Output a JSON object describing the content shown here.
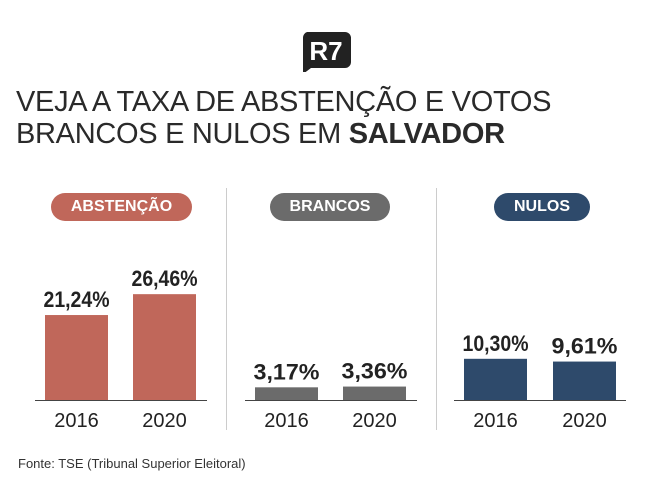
{
  "logo": "R7",
  "title": {
    "line1": "VEJA A TAXA DE ABSTENÇÃO E VOTOS",
    "line2_regular": "BRANCOS E NULOS EM ",
    "line2_bold": "SALVADOR"
  },
  "source": "Fonte: TSE (Tribunal Superior Eleitoral)",
  "chart_data": [
    {
      "type": "bar",
      "title": "ABSTENÇÃO",
      "color": "#c0675a",
      "categories": [
        "2016",
        "2020"
      ],
      "values": [
        21.24,
        26.46
      ],
      "labels": [
        "21,24%",
        "26,46%"
      ]
    },
    {
      "type": "bar",
      "title": "BRANCOS",
      "color": "#6b6b6b",
      "categories": [
        "2016",
        "2020"
      ],
      "values": [
        3.17,
        3.36
      ],
      "labels": [
        "3,17%",
        "3,36%"
      ]
    },
    {
      "type": "bar",
      "title": "NULOS",
      "color": "#2e4a6b",
      "categories": [
        "2016",
        "2020"
      ],
      "values": [
        10.3,
        9.61
      ],
      "labels": [
        "10,30%",
        "9,61%"
      ]
    }
  ]
}
